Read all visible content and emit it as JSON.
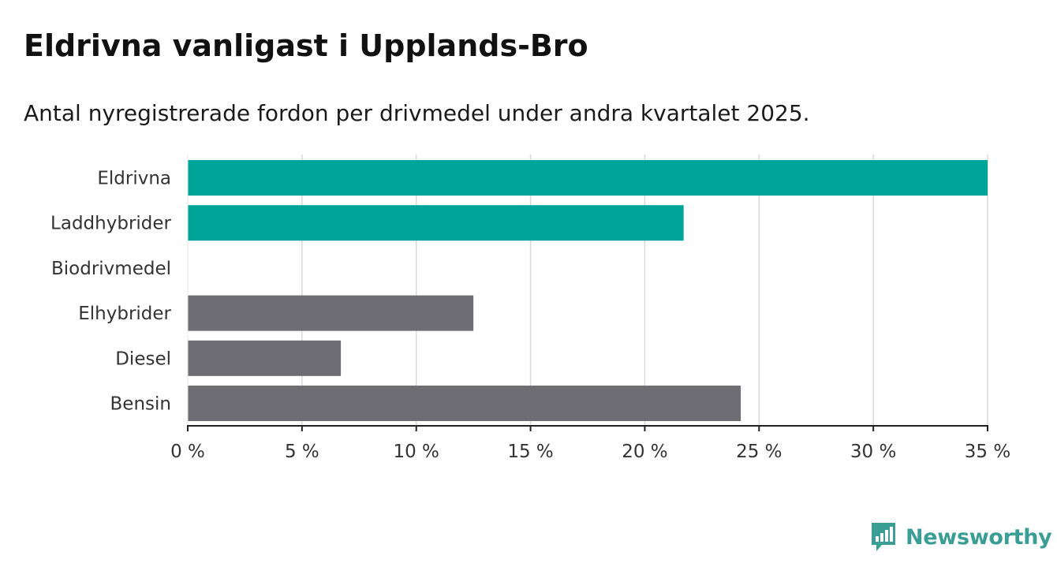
{
  "title": "Eldrivna vanligast i Upplands-Bro",
  "subtitle": "Antal nyregistrerade fordon per drivmedel under andra kvartalet 2025.",
  "brand": {
    "name": "Newsworthy",
    "color": "#3a9e94",
    "icon": "bar-chart-speech-bubble-icon"
  },
  "chart_data": {
    "type": "bar",
    "orientation": "horizontal",
    "categories": [
      "Eldrivna",
      "Laddhybrider",
      "Biodrivmedel",
      "Elhybrider",
      "Diesel",
      "Bensin"
    ],
    "values": [
      35.0,
      21.7,
      0,
      12.5,
      6.7,
      24.2
    ],
    "colors": [
      "#00a59a",
      "#00a59a",
      "#00a59a",
      "#6e6d73",
      "#6e6d73",
      "#6e6d73"
    ],
    "xlim": [
      0,
      35
    ],
    "xticks": [
      0,
      5,
      10,
      15,
      20,
      25,
      30,
      35
    ],
    "xtick_labels": [
      "0 %",
      "5 %",
      "10 %",
      "15 %",
      "20 %",
      "25 %",
      "30 %",
      "35 %"
    ],
    "grid": true,
    "xlabel": "",
    "ylabel": ""
  }
}
